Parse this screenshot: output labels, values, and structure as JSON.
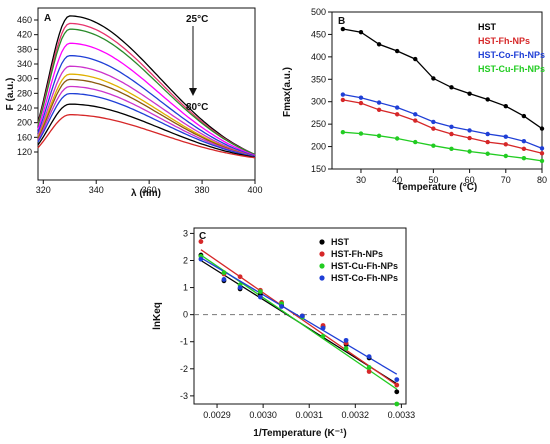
{
  "chart_data": [
    {
      "panel": "A",
      "type": "line",
      "xlabel": "λ (nm)",
      "ylabel": "F (a.u.)",
      "xlim": [
        318,
        400
      ],
      "ylim": [
        90,
        480
      ],
      "xticks": [
        320,
        340,
        360,
        380,
        400
      ],
      "yticks": [
        120,
        160,
        200,
        240,
        280,
        300,
        340,
        380,
        420,
        460
      ],
      "annotations": [
        "25°C",
        "80°C"
      ],
      "series": [
        {
          "color": "#000000",
          "peak": 462
        },
        {
          "color": "#e8336e",
          "peak": 445
        },
        {
          "color": "#2a8a2a",
          "peak": 432
        },
        {
          "color": "#ff00ff",
          "peak": 400
        },
        {
          "color": "#1f3fd6",
          "peak": 372
        },
        {
          "color": "#cc33cc",
          "peak": 348
        },
        {
          "color": "#e0b000",
          "peak": 330
        },
        {
          "color": "#8a5a10",
          "peak": 318
        },
        {
          "color": "#cc33cc",
          "peak": 302
        },
        {
          "color": "#1f3fd6",
          "peak": 286
        },
        {
          "color": "#000000",
          "peak": 262
        },
        {
          "color": "#d62728",
          "peak": 238
        }
      ]
    },
    {
      "panel": "B",
      "type": "scatter",
      "xlabel": "Temperature (°C)",
      "ylabel": "Fmax(a.u.)",
      "xlim": [
        22,
        80
      ],
      "ylim": [
        150,
        500
      ],
      "xticks": [
        30,
        40,
        50,
        60,
        70,
        80
      ],
      "yticks": [
        150,
        200,
        250,
        300,
        350,
        400,
        450,
        500
      ],
      "series": [
        {
          "name": "HST",
          "color": "#000000",
          "x": [
            25,
            30,
            35,
            40,
            45,
            50,
            55,
            60,
            65,
            70,
            75,
            80
          ],
          "y": [
            462,
            455,
            428,
            413,
            395,
            352,
            332,
            318,
            305,
            290,
            268,
            240
          ]
        },
        {
          "name": "HST-Fh-NPs",
          "color": "#d62728",
          "x": [
            25,
            30,
            35,
            40,
            45,
            50,
            55,
            60,
            65,
            70,
            75,
            80
          ],
          "y": [
            304,
            297,
            282,
            272,
            258,
            240,
            228,
            219,
            210,
            205,
            195,
            185
          ]
        },
        {
          "name": "HST-Co-Fh-NPs",
          "color": "#1f3fd6",
          "x": [
            25,
            30,
            35,
            40,
            45,
            50,
            55,
            60,
            65,
            70,
            75,
            80
          ],
          "y": [
            316,
            309,
            298,
            287,
            272,
            255,
            244,
            236,
            228,
            222,
            212,
            196
          ]
        },
        {
          "name": "HST-Cu-Fh-NPs",
          "color": "#22cc22",
          "x": [
            25,
            30,
            35,
            40,
            45,
            50,
            55,
            60,
            65,
            70,
            75,
            80
          ],
          "y": [
            232,
            229,
            224,
            218,
            210,
            202,
            195,
            189,
            184,
            179,
            174,
            168
          ]
        }
      ]
    },
    {
      "panel": "C",
      "type": "scatter",
      "xlabel": "1/Temperature (K⁻¹)",
      "ylabel": "lnKeq",
      "xlim": [
        0.00285,
        0.00331
      ],
      "ylim": [
        -3.3,
        3.2
      ],
      "xticks": [
        "0.0029",
        "0.0030",
        "0.0031",
        "0.0032",
        "0.0033"
      ],
      "yticks": [
        3,
        2,
        1,
        0,
        -1,
        -2,
        -3
      ],
      "series": [
        {
          "name": "HST",
          "color": "#000000",
          "x": [
            0.002865,
            0.002915,
            0.00295,
            0.002994,
            0.00304,
            0.003085,
            0.00313,
            0.00318,
            0.00323,
            0.00329
          ],
          "y": [
            2.2,
            1.25,
            0.95,
            0.75,
            0.35,
            -0.05,
            -0.45,
            -1.1,
            -1.6,
            -2.85
          ]
        },
        {
          "name": "HST-Fh-NPs",
          "color": "#d62728",
          "x": [
            0.002865,
            0.002915,
            0.00295,
            0.002994,
            0.00304,
            0.003085,
            0.00313,
            0.00318,
            0.00323,
            0.00329
          ],
          "y": [
            2.7,
            1.5,
            1.4,
            0.9,
            0.45,
            -0.05,
            -0.4,
            -1.05,
            -2.1,
            -2.6
          ]
        },
        {
          "name": "HST-Cu-Fh-NPs",
          "color": "#22cc22",
          "x": [
            0.002865,
            0.002915,
            0.00295,
            0.002994,
            0.00304,
            0.003085,
            0.00313,
            0.00318,
            0.00323,
            0.00329
          ],
          "y": [
            2.15,
            1.55,
            1.1,
            0.85,
            0.4,
            -0.1,
            -0.8,
            -1.25,
            -1.95,
            -3.3
          ]
        },
        {
          "name": "HST-Co-Fh-NPs",
          "color": "#1f3fd6",
          "x": [
            0.002865,
            0.002915,
            0.00295,
            0.002994,
            0.00304,
            0.003085,
            0.00313,
            0.00318,
            0.00323,
            0.00329
          ],
          "y": [
            2.05,
            1.3,
            1.0,
            0.65,
            0.3,
            -0.05,
            -0.5,
            -0.95,
            -1.55,
            -2.4
          ]
        }
      ],
      "fits": [
        {
          "color": "#000000",
          "y_start": 2.0,
          "y_end": -2.55
        },
        {
          "color": "#d62728",
          "y_start": 2.4,
          "y_end": -2.6
        },
        {
          "color": "#22cc22",
          "y_start": 2.2,
          "y_end": -2.75
        },
        {
          "color": "#1f3fd6",
          "y_start": 2.1,
          "y_end": -2.2
        }
      ],
      "reference_line": 0
    }
  ]
}
